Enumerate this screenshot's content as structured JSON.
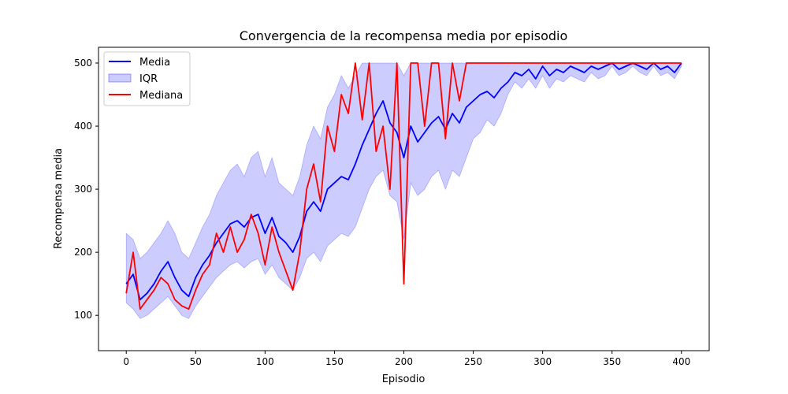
{
  "chart_data": {
    "type": "line",
    "title": "Convergencia de la recompensa media por episodio",
    "xlabel": "Episodio",
    "ylabel": "Recompensa media",
    "xlim": [
      -20,
      420
    ],
    "ylim": [
      44,
      525
    ],
    "xticks": [
      0,
      50,
      100,
      150,
      200,
      250,
      300,
      350,
      400
    ],
    "yticks": [
      100,
      200,
      300,
      400,
      500
    ],
    "grid": false,
    "legend_position": "top-left",
    "colors": {
      "mean": "#0000ff",
      "iqr": "#0000ff",
      "median": "#ff0000"
    },
    "series": [
      {
        "name": "Media",
        "kind": "line",
        "x": [
          0,
          5,
          10,
          15,
          20,
          25,
          30,
          35,
          40,
          45,
          50,
          55,
          60,
          65,
          70,
          75,
          80,
          85,
          90,
          95,
          100,
          105,
          110,
          115,
          120,
          125,
          130,
          135,
          140,
          145,
          150,
          155,
          160,
          165,
          170,
          175,
          180,
          185,
          190,
          195,
          200,
          205,
          210,
          215,
          220,
          225,
          230,
          235,
          240,
          245,
          250,
          255,
          260,
          265,
          270,
          275,
          280,
          285,
          290,
          295,
          300,
          305,
          310,
          315,
          320,
          325,
          330,
          335,
          340,
          345,
          350,
          355,
          360,
          365,
          370,
          375,
          380,
          385,
          390,
          395,
          400
        ],
        "values": [
          150,
          165,
          125,
          135,
          150,
          170,
          185,
          160,
          140,
          130,
          160,
          180,
          195,
          215,
          230,
          245,
          250,
          240,
          255,
          260,
          230,
          255,
          225,
          215,
          200,
          225,
          265,
          280,
          265,
          300,
          310,
          320,
          315,
          340,
          370,
          395,
          420,
          440,
          405,
          390,
          350,
          400,
          375,
          390,
          405,
          415,
          395,
          420,
          405,
          430,
          440,
          450,
          455,
          445,
          460,
          470,
          485,
          480,
          490,
          475,
          495,
          480,
          490,
          485,
          495,
          490,
          485,
          495,
          490,
          495,
          500,
          490,
          495,
          500,
          495,
          490,
          500,
          490,
          495,
          485,
          500
        ]
      },
      {
        "name": "IQR",
        "kind": "band",
        "x": [
          0,
          5,
          10,
          15,
          20,
          25,
          30,
          35,
          40,
          45,
          50,
          55,
          60,
          65,
          70,
          75,
          80,
          85,
          90,
          95,
          100,
          105,
          110,
          115,
          120,
          125,
          130,
          135,
          140,
          145,
          150,
          155,
          160,
          165,
          170,
          175,
          180,
          185,
          190,
          195,
          200,
          205,
          210,
          215,
          220,
          225,
          230,
          235,
          240,
          245,
          250,
          255,
          260,
          265,
          270,
          275,
          280,
          285,
          290,
          295,
          300,
          305,
          310,
          315,
          320,
          325,
          330,
          335,
          340,
          345,
          350,
          355,
          360,
          365,
          370,
          375,
          380,
          385,
          390,
          395,
          400
        ],
        "lower": [
          120,
          110,
          95,
          100,
          110,
          120,
          130,
          115,
          100,
          95,
          115,
          130,
          145,
          160,
          170,
          180,
          185,
          175,
          185,
          190,
          165,
          180,
          160,
          150,
          140,
          160,
          190,
          200,
          185,
          210,
          220,
          230,
          225,
          240,
          270,
          300,
          320,
          330,
          290,
          280,
          220,
          310,
          290,
          300,
          320,
          330,
          300,
          330,
          320,
          350,
          380,
          390,
          410,
          400,
          420,
          450,
          470,
          460,
          475,
          460,
          480,
          460,
          475,
          470,
          480,
          475,
          470,
          485,
          475,
          480,
          495,
          480,
          485,
          495,
          485,
          480,
          495,
          480,
          485,
          475,
          495
        ],
        "upper": [
          230,
          220,
          190,
          200,
          215,
          230,
          250,
          230,
          200,
          190,
          215,
          240,
          260,
          290,
          310,
          330,
          340,
          320,
          350,
          360,
          320,
          350,
          310,
          300,
          290,
          320,
          370,
          400,
          380,
          430,
          450,
          480,
          460,
          480,
          500,
          500,
          500,
          500,
          500,
          500,
          480,
          500,
          500,
          500,
          500,
          500,
          500,
          500,
          500,
          500,
          500,
          500,
          500,
          500,
          500,
          500,
          500,
          500,
          500,
          500,
          500,
          500,
          500,
          500,
          500,
          500,
          500,
          500,
          500,
          500,
          500,
          500,
          500,
          500,
          500,
          500,
          500,
          500,
          500,
          500,
          500
        ]
      },
      {
        "name": "Mediana",
        "kind": "line",
        "x": [
          0,
          5,
          10,
          15,
          20,
          25,
          30,
          35,
          40,
          45,
          50,
          55,
          60,
          65,
          70,
          75,
          80,
          85,
          90,
          95,
          100,
          105,
          110,
          115,
          120,
          125,
          130,
          135,
          140,
          145,
          150,
          155,
          160,
          165,
          170,
          175,
          180,
          185,
          190,
          195,
          200,
          205,
          210,
          215,
          220,
          225,
          230,
          235,
          240,
          245,
          250,
          255,
          260,
          265,
          270,
          275,
          280,
          285,
          290,
          295,
          300,
          305,
          310,
          315,
          320,
          325,
          330,
          335,
          340,
          345,
          350,
          355,
          360,
          365,
          370,
          375,
          380,
          385,
          390,
          395,
          400
        ],
        "values": [
          135,
          200,
          110,
          125,
          140,
          160,
          150,
          125,
          115,
          110,
          140,
          165,
          180,
          230,
          200,
          240,
          200,
          220,
          260,
          230,
          180,
          240,
          200,
          170,
          140,
          200,
          300,
          340,
          280,
          400,
          360,
          450,
          420,
          500,
          410,
          500,
          360,
          400,
          300,
          500,
          150,
          500,
          500,
          400,
          500,
          500,
          380,
          500,
          440,
          500,
          500,
          500,
          500,
          500,
          500,
          500,
          500,
          500,
          500,
          500,
          500,
          500,
          500,
          500,
          500,
          500,
          500,
          500,
          500,
          500,
          500,
          500,
          500,
          500,
          500,
          500,
          500,
          500,
          500,
          500,
          500
        ]
      }
    ]
  }
}
